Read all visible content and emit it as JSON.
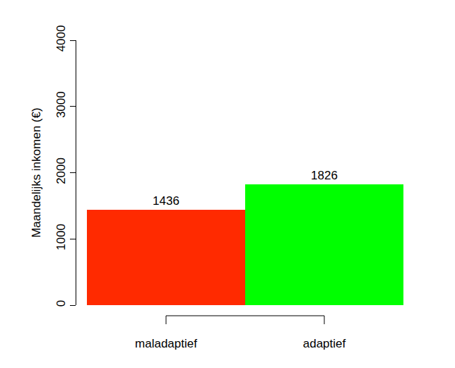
{
  "chart_data": {
    "type": "bar",
    "y_label": "Maandelijks inkomen (€)",
    "categories": [
      "maladaptief",
      "adaptief"
    ],
    "values": [
      1436,
      1826
    ],
    "colors": [
      "#ff2a00",
      "#00ff00"
    ],
    "ylim": [
      0,
      4000
    ],
    "yticks": [
      0,
      1000,
      2000,
      3000,
      4000
    ],
    "grid": false,
    "data_labels": true
  }
}
